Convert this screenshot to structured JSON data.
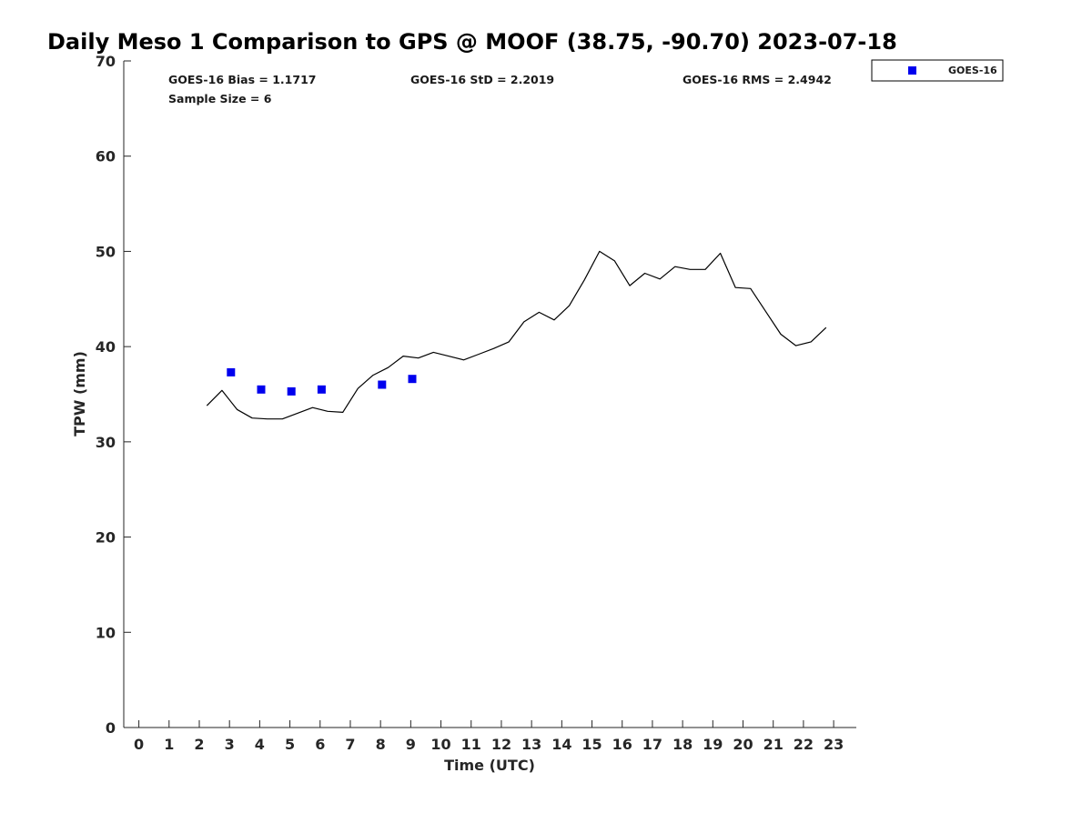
{
  "chart_data": {
    "type": "scatter",
    "title": "Daily Meso 1 Comparison to GPS @ MOOF (38.75, -90.70) 2023-07-18",
    "xlabel": "Time (UTC)",
    "ylabel": "TPW (mm)",
    "xlim": [
      -0.5,
      23.75
    ],
    "ylim": [
      0,
      70
    ],
    "xticks": [
      "0",
      "1",
      "2",
      "3",
      "4",
      "5",
      "6",
      "7",
      "8",
      "9",
      "10",
      "11",
      "12",
      "13",
      "14",
      "15",
      "16",
      "17",
      "18",
      "19",
      "20",
      "21",
      "22",
      "23"
    ],
    "yticks": [
      "0",
      "10",
      "20",
      "30",
      "40",
      "50",
      "60",
      "70"
    ],
    "grid": false,
    "legend_position": "top-right, outside plot",
    "stats": {
      "bias": "GOES-16 Bias = 1.1717",
      "std": "GOES-16 StD = 2.2019",
      "rms": "GOES-16 RMS = 2.4942",
      "sample": "Sample Size = 6"
    },
    "series": [
      {
        "name": "GOES-16",
        "kind": "markers",
        "marker": "square",
        "color": "#0000ee",
        "x": [
          3.05,
          4.05,
          5.05,
          6.05,
          8.05,
          9.05
        ],
        "y": [
          37.3,
          35.5,
          35.3,
          35.5,
          36.0,
          36.6
        ]
      },
      {
        "kind": "line",
        "color": "#000000",
        "x": [
          2.25,
          2.75,
          3.25,
          3.75,
          4.25,
          4.75,
          5.25,
          5.75,
          6.25,
          6.75,
          7.25,
          7.75,
          8.25,
          8.75,
          9.25,
          9.75,
          10.25,
          10.75,
          11.25,
          11.75,
          12.25,
          12.75,
          13.25,
          13.75,
          14.25,
          14.75,
          15.25,
          15.75,
          16.25,
          16.75,
          17.25,
          17.75,
          18.25,
          18.75,
          19.25,
          19.75,
          20.25,
          20.75,
          21.25,
          21.75,
          22.25,
          22.75
        ],
        "y": [
          33.8,
          35.4,
          33.4,
          32.5,
          32.4,
          32.4,
          33.0,
          33.6,
          33.2,
          33.1,
          35.6,
          37.0,
          37.8,
          39.0,
          38.8,
          39.4,
          39.0,
          38.6,
          39.2,
          39.8,
          40.5,
          42.6,
          43.6,
          42.8,
          44.3,
          47.0,
          50.0,
          49.0,
          46.4,
          47.7,
          47.1,
          48.4,
          48.1,
          48.1,
          49.8,
          46.2,
          46.1,
          43.7,
          41.3,
          40.1,
          40.5,
          42.0
        ]
      }
    ]
  }
}
